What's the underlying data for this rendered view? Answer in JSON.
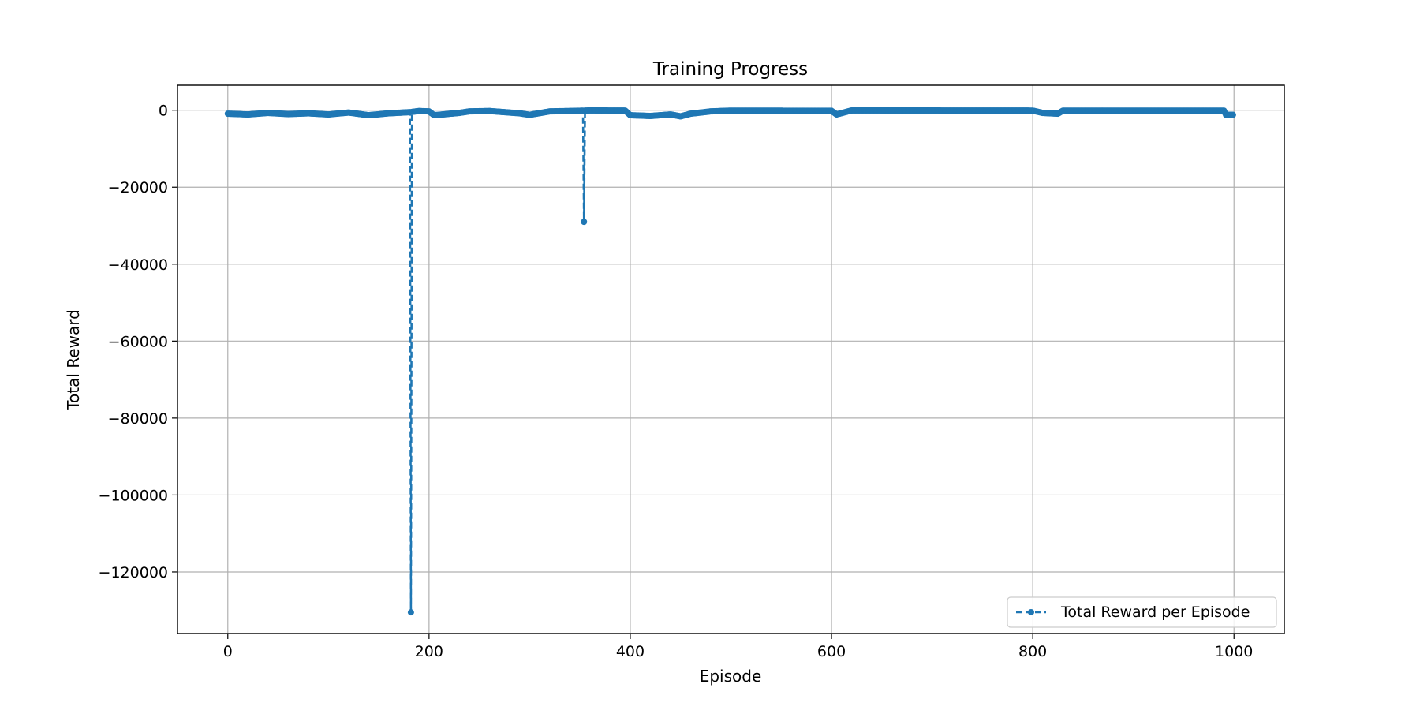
{
  "chart_data": {
    "type": "line",
    "title": "Training Progress",
    "xlabel": "Episode",
    "ylabel": "Total Reward",
    "xlim": [
      -50,
      1050
    ],
    "ylim": [
      -136000,
      6500
    ],
    "x_ticks": [
      0,
      200,
      400,
      600,
      800,
      1000
    ],
    "x_tick_labels": [
      "0",
      "200",
      "400",
      "600",
      "800",
      "1000"
    ],
    "y_ticks": [
      0,
      -20000,
      -40000,
      -60000,
      -80000,
      -100000,
      -120000
    ],
    "y_tick_labels": [
      "0",
      "−20000",
      "−40000",
      "−60000",
      "−80000",
      "−100000",
      "−120000"
    ],
    "grid": true,
    "legend_position": "lower-right",
    "series": [
      {
        "name": "Total Reward per Episode",
        "color": "#1f77b4",
        "line_style": "dashed",
        "marker": "circle",
        "x_range": [
          0,
          999
        ],
        "baseline_segments": [
          [
            0,
            -900
          ],
          [
            20,
            -1100
          ],
          [
            40,
            -700
          ],
          [
            60,
            -1000
          ],
          [
            80,
            -800
          ],
          [
            100,
            -1100
          ],
          [
            120,
            -600
          ],
          [
            140,
            -1300
          ],
          [
            160,
            -800
          ],
          [
            181,
            -500
          ],
          [
            190,
            -200
          ],
          [
            200,
            -300
          ],
          [
            205,
            -1300
          ],
          [
            230,
            -700
          ],
          [
            240,
            -300
          ],
          [
            260,
            -200
          ],
          [
            290,
            -800
          ],
          [
            300,
            -1200
          ],
          [
            320,
            -300
          ],
          [
            340,
            -200
          ],
          [
            354,
            -100
          ],
          [
            360,
            -50
          ],
          [
            395,
            -100
          ],
          [
            400,
            -1300
          ],
          [
            420,
            -1500
          ],
          [
            440,
            -1100
          ],
          [
            450,
            -1600
          ],
          [
            460,
            -900
          ],
          [
            480,
            -300
          ],
          [
            500,
            -100
          ],
          [
            600,
            -150
          ],
          [
            605,
            -1100
          ],
          [
            615,
            -400
          ],
          [
            620,
            -50
          ],
          [
            800,
            -100
          ],
          [
            810,
            -700
          ],
          [
            825,
            -900
          ],
          [
            830,
            -100
          ],
          [
            990,
            -100
          ],
          [
            992,
            -1200
          ],
          [
            999,
            -1200
          ]
        ],
        "spikes": [
          {
            "episode": 182,
            "value": -130500
          },
          {
            "episode": 354,
            "value": -29000
          }
        ]
      }
    ]
  }
}
